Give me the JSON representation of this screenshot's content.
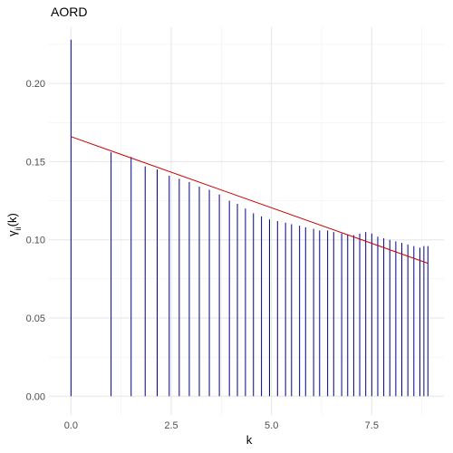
{
  "chart_data": {
    "type": "line",
    "title": "AORD",
    "xlabel": "k",
    "ylabel_main": "γ",
    "ylabel_sub": "ii",
    "ylabel_suffix": "(k)",
    "xlim": [
      -0.55,
      9.3
    ],
    "ylim": [
      -0.012,
      0.236
    ],
    "x_ticks": [
      0,
      2.5,
      5,
      7.5
    ],
    "x_tick_labels": [
      "0.0",
      "2.5",
      "5.0",
      "7.5"
    ],
    "y_ticks": [
      0,
      0.05,
      0.1,
      0.15,
      0.2
    ],
    "y_tick_labels": [
      "0.00",
      "0.05",
      "0.10",
      "0.15",
      "0.20"
    ],
    "grid": true,
    "bar_color": "#00008b",
    "line_color": "#cc0000",
    "series": [
      {
        "type": "stem",
        "x": [
          0,
          1.0,
          1.5,
          1.85,
          2.15,
          2.45,
          2.7,
          2.95,
          3.2,
          3.45,
          3.7,
          3.95,
          4.15,
          4.35,
          4.55,
          4.75,
          4.95,
          5.15,
          5.35,
          5.5,
          5.7,
          5.85,
          6.05,
          6.2,
          6.4,
          6.55,
          6.75,
          6.9,
          7.05,
          7.2,
          7.35,
          7.5,
          7.65,
          7.8,
          7.95,
          8.1,
          8.25,
          8.4,
          8.55,
          8.7,
          8.8,
          8.9
        ],
        "y": [
          0.228,
          0.156,
          0.153,
          0.147,
          0.145,
          0.141,
          0.139,
          0.137,
          0.134,
          0.132,
          0.129,
          0.125,
          0.123,
          0.12,
          0.117,
          0.115,
          0.113,
          0.112,
          0.111,
          0.11,
          0.109,
          0.108,
          0.107,
          0.106,
          0.106,
          0.105,
          0.104,
          0.103,
          0.103,
          0.104,
          0.105,
          0.104,
          0.102,
          0.101,
          0.1,
          0.099,
          0.098,
          0.097,
          0.096,
          0.095,
          0.096,
          0.096
        ]
      },
      {
        "type": "line",
        "x": [
          0,
          8.9
        ],
        "y": [
          0.166,
          0.085
        ]
      }
    ]
  }
}
